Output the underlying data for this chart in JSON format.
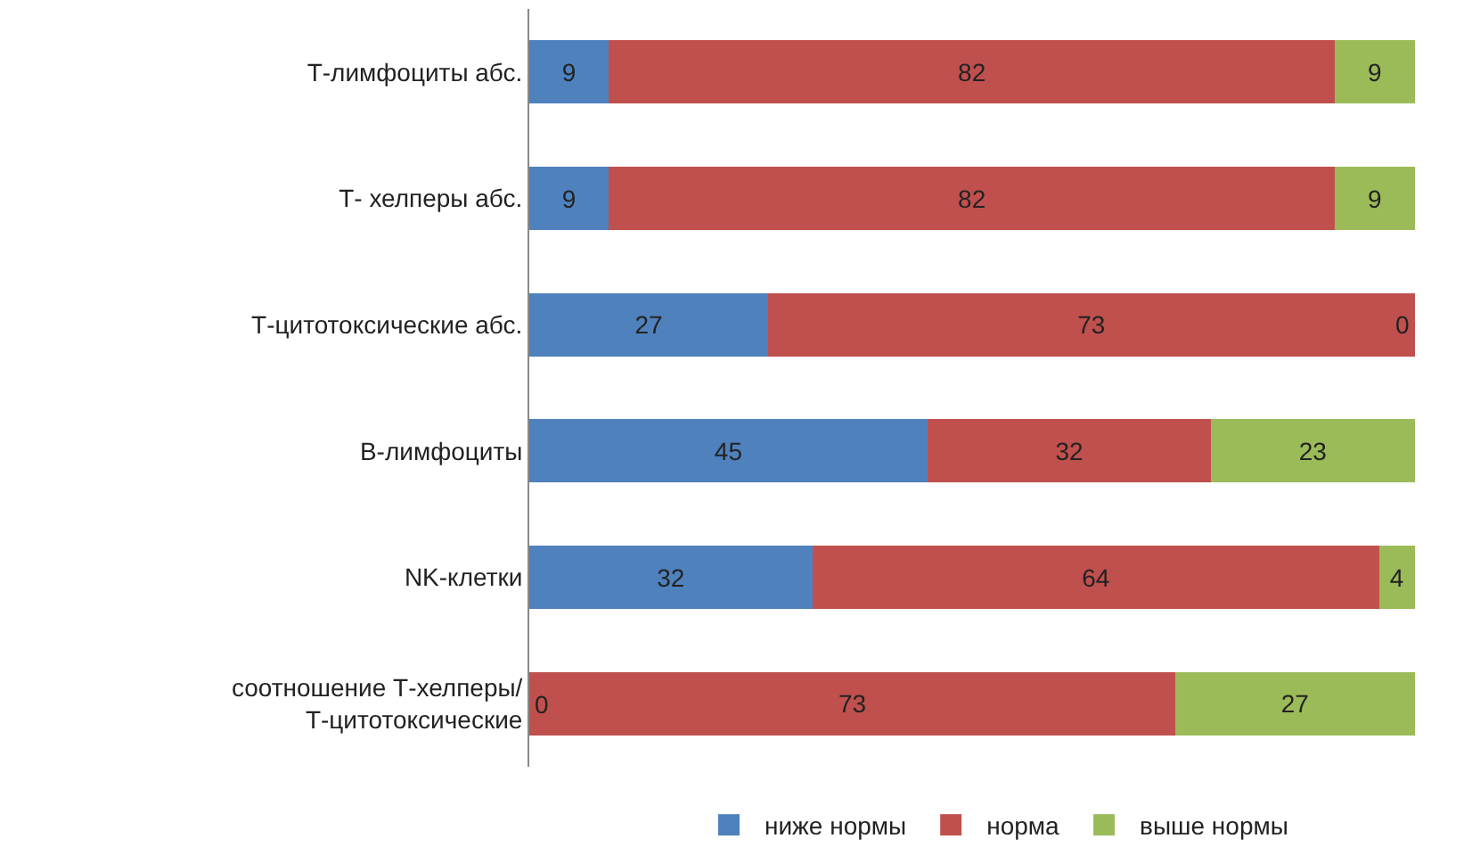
{
  "chart_data": {
    "type": "bar",
    "orientation": "horizontal",
    "stacked": true,
    "legend": "bottom",
    "categories": [
      "Т-лимфоциты абс.",
      "Т- хелперы абс.",
      "Т-цитотоксические абс.",
      "В-лимфоциты",
      "NK-клетки",
      "соотношение Т-хелперы/ Т-цитотоксические"
    ],
    "series": [
      {
        "name": "ниже нормы",
        "color": "#4f81bd",
        "values": [
          9,
          9,
          27,
          45,
          32,
          0
        ],
        "value_labels": [
          "9",
          "9",
          "27",
          "45",
          "32",
          null
        ]
      },
      {
        "name": "норма",
        "color": "#c0504d",
        "values": [
          82,
          82,
          73,
          32,
          64,
          73
        ],
        "value_labels": [
          "82",
          "82",
          "73",
          "32",
          "64",
          "73"
        ]
      },
      {
        "name": "выше нормы",
        "color": "#9bbb59",
        "values": [
          9,
          9,
          0,
          23,
          4,
          27
        ],
        "value_labels": [
          "9",
          "9",
          "0",
          "23",
          "4",
          "27"
        ]
      }
    ],
    "annotations": [
      {
        "text": "0",
        "x": 0,
        "y": "соотношение Т-хелперы/ Т-цитотоксические"
      }
    ]
  }
}
